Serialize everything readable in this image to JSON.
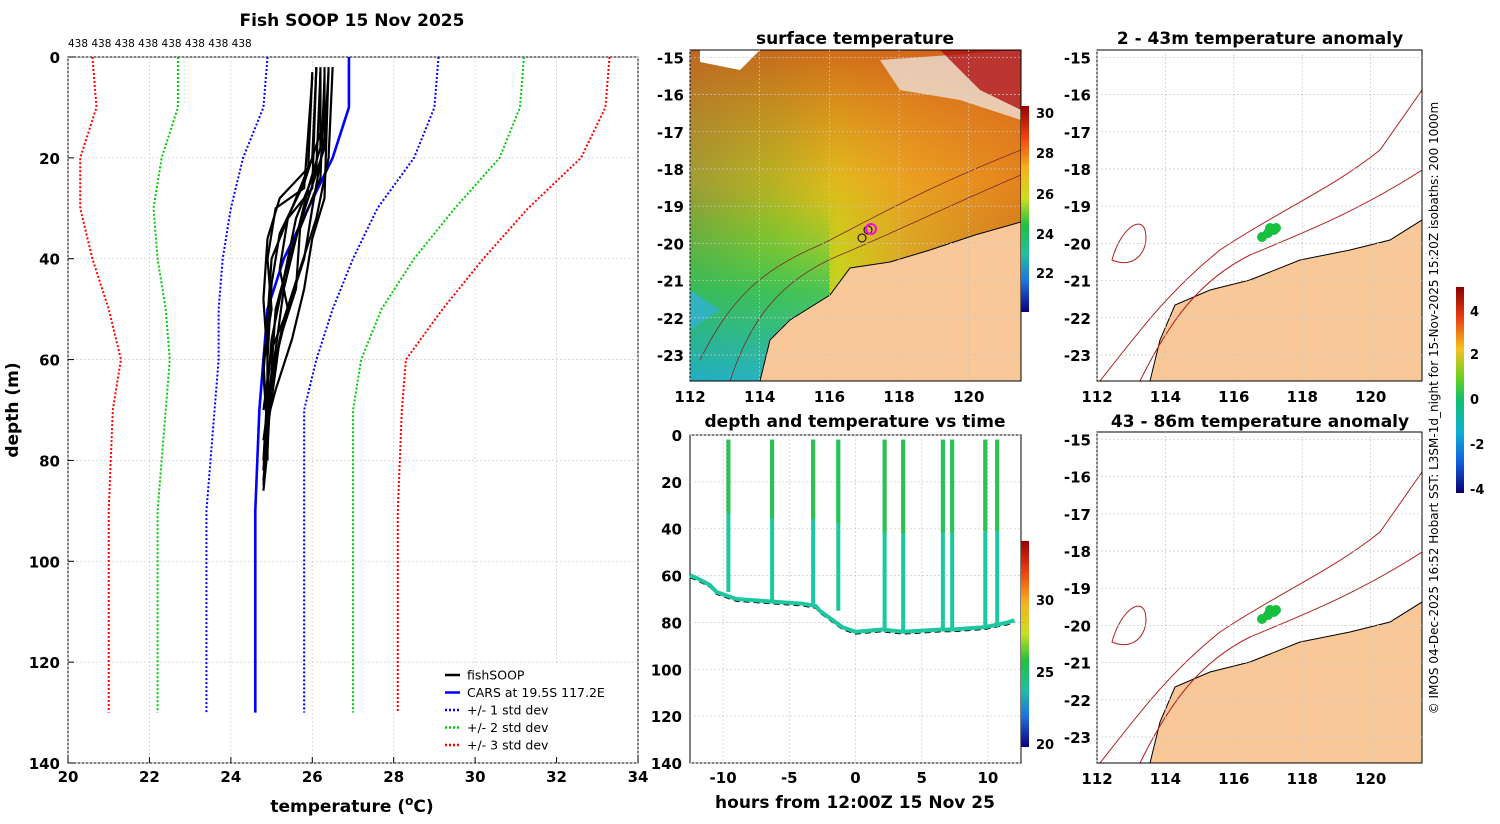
{
  "profile": {
    "title": "Fish SOOP 15 Nov 2025",
    "counts_label": "438 438 438 438 438 438 438 438",
    "xlabel": "temperature (",
    "xlabel_sup": "o",
    "xlabel_end": "C)",
    "ylabel": "depth (m)",
    "x_ticks": [
      "20",
      "22",
      "24",
      "26",
      "28",
      "30",
      "32",
      "34"
    ],
    "y_ticks": [
      "0",
      "20",
      "40",
      "60",
      "80",
      "100",
      "120",
      "140"
    ],
    "legend": [
      {
        "label": "fishSOOP",
        "color": "#000000",
        "style": "solid"
      },
      {
        "label": "CARS at 19.5S 117.2E",
        "color": "#0000ff",
        "style": "solid"
      },
      {
        "label": "+/- 1 std dev",
        "color": "#0000ff",
        "style": "dotted"
      },
      {
        "label": "+/- 2 std dev",
        "color": "#00cc00",
        "style": "dotted"
      },
      {
        "label": "+/- 3 std dev",
        "color": "#ff0000",
        "style": "dotted"
      }
    ]
  },
  "sst_map": {
    "title": "surface temperature",
    "x_ticks": [
      "112",
      "114",
      "116",
      "118",
      "120"
    ],
    "y_ticks": [
      "-15",
      "-16",
      "-17",
      "-18",
      "-19",
      "-20",
      "-21",
      "-22",
      "-23"
    ],
    "colorbar_ticks": [
      "30",
      "28",
      "26",
      "24",
      "22"
    ]
  },
  "time_panel": {
    "title": "depth and temperature vs time",
    "xlabel": "hours from 12:00Z 15 Nov 25",
    "x_ticks": [
      "-10",
      "-5",
      "0",
      "5",
      "10"
    ],
    "y_ticks": [
      "0",
      "20",
      "40",
      "60",
      "80",
      "100",
      "120",
      "140"
    ],
    "colorbar_ticks": [
      "30",
      "25",
      "20"
    ]
  },
  "anomaly_top": {
    "title": "2 - 43m temperature anomaly",
    "x_ticks": [
      "112",
      "114",
      "116",
      "118",
      "120"
    ],
    "y_ticks": [
      "-15",
      "-16",
      "-17",
      "-18",
      "-19",
      "-20",
      "-21",
      "-22",
      "-23"
    ]
  },
  "anomaly_bottom": {
    "title": "43 - 86m temperature anomaly",
    "x_ticks": [
      "112",
      "114",
      "116",
      "118",
      "120"
    ],
    "y_ticks": [
      "-15",
      "-16",
      "-17",
      "-18",
      "-19",
      "-20",
      "-21",
      "-22",
      "-23"
    ]
  },
  "anomaly_colorbar_ticks": [
    "4",
    "2",
    "0",
    "-2",
    "-4"
  ],
  "side_note": "© IMOS 04-Dec-2025 16:52 Hobart SST: L3SM-1d_night for 15-Nov-2025 15:20Z isobaths: 200  1000m",
  "chart_data": [
    {
      "type": "line",
      "title": "Fish SOOP 15 Nov 2025",
      "xlabel": "temperature (oC)",
      "ylabel": "depth (m)",
      "xlim": [
        20,
        34
      ],
      "ylim": [
        140,
        0
      ],
      "series": [
        {
          "name": "CARS at 19.5S 117.2E",
          "x": [
            26.9,
            26.9,
            26.5,
            25.9,
            25.3,
            24.9,
            24.8,
            24.7,
            24.6,
            24.6,
            24.6
          ],
          "y": [
            0,
            10,
            20,
            30,
            40,
            50,
            60,
            70,
            90,
            110,
            130
          ]
        },
        {
          "name": "+1 std dev",
          "x": [
            29.1,
            29.0,
            28.5,
            27.6,
            27.0,
            26.5,
            26.1,
            25.8,
            25.8,
            25.8,
            25.8
          ],
          "y": [
            0,
            10,
            20,
            30,
            40,
            50,
            60,
            70,
            90,
            110,
            130
          ]
        },
        {
          "name": "-1 std dev",
          "x": [
            24.9,
            24.8,
            24.3,
            24.0,
            23.8,
            23.7,
            23.7,
            23.6,
            23.4,
            23.4,
            23.4
          ],
          "y": [
            0,
            10,
            20,
            30,
            40,
            50,
            60,
            70,
            90,
            110,
            130
          ]
        },
        {
          "name": "+2 std dev",
          "x": [
            31.2,
            31.1,
            30.6,
            29.5,
            28.5,
            27.7,
            27.2,
            27.0,
            27.0,
            27.0,
            27.0
          ],
          "y": [
            0,
            10,
            20,
            30,
            40,
            50,
            60,
            70,
            90,
            110,
            130
          ]
        },
        {
          "name": "-2 std dev",
          "x": [
            22.7,
            22.7,
            22.3,
            22.1,
            22.2,
            22.4,
            22.5,
            22.4,
            22.2,
            22.2,
            22.2
          ],
          "y": [
            0,
            10,
            20,
            30,
            40,
            50,
            60,
            70,
            90,
            110,
            130
          ]
        },
        {
          "name": "+3 std dev",
          "x": [
            33.3,
            33.2,
            32.6,
            31.3,
            30.2,
            29.2,
            28.3,
            28.2,
            28.1,
            28.1,
            28.1
          ],
          "y": [
            0,
            10,
            20,
            30,
            40,
            50,
            60,
            70,
            90,
            110,
            130
          ]
        },
        {
          "name": "-3 std dev",
          "x": [
            20.6,
            20.7,
            20.3,
            20.3,
            20.6,
            21.0,
            21.3,
            21.1,
            21.0,
            21.0,
            21.0
          ],
          "y": [
            0,
            10,
            20,
            30,
            40,
            50,
            60,
            70,
            90,
            110,
            130
          ]
        }
      ]
    },
    {
      "type": "line",
      "title": "depth and temperature vs time",
      "xlabel": "hours from 12:00Z 15 Nov 25",
      "xlim": [
        -12.5,
        12.5
      ],
      "ylim": [
        140,
        0
      ],
      "casts_hours": [
        -9.6,
        -6.3,
        -3.2,
        -1.3,
        2.2,
        3.6,
        6.6,
        7.3,
        9.8,
        10.7
      ],
      "bottom_depth": {
        "x": [
          -12.5,
          -12.0,
          -11.0,
          -10.5,
          -9.0,
          -6.5,
          -4.0,
          -3.0,
          -2.7,
          -1.0,
          0,
          2.0,
          3.6,
          6.5,
          7.3,
          9.8,
          11.5,
          12.0
        ],
        "y": [
          60,
          61,
          64,
          67,
          70,
          71,
          72,
          73,
          75,
          82,
          84,
          83,
          84,
          83,
          83,
          82,
          80,
          79
        ]
      }
    }
  ]
}
